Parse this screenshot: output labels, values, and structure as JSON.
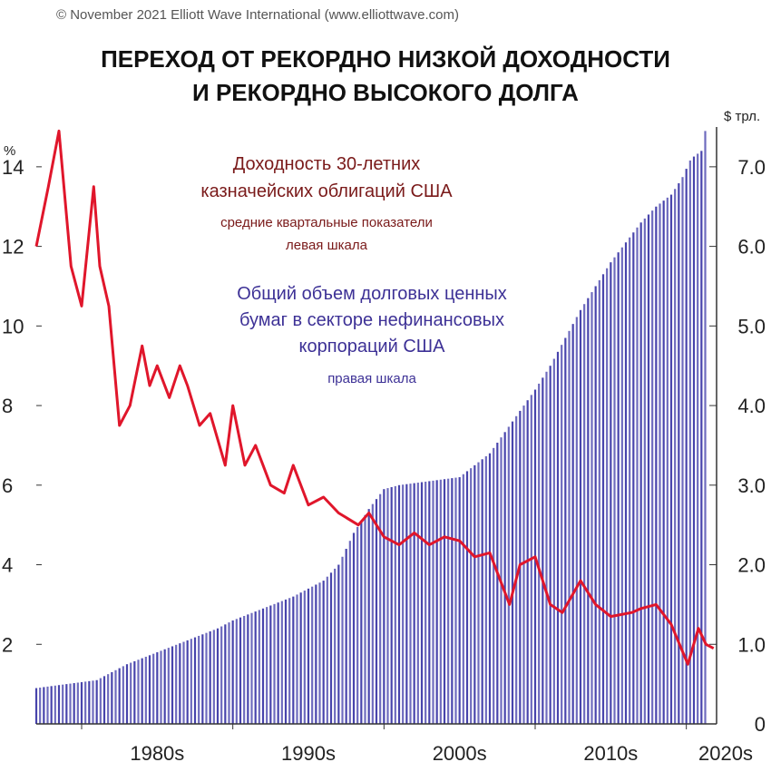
{
  "copyright": "© November 2021 Elliott Wave International (www.elliottwave.com)",
  "title_line1": "ПЕРЕХОД ОТ РЕКОРДНО НИЗКОЙ ДОХОДНОСТИ",
  "title_line2": "И РЕКОРДНО ВЫСОКОГО ДОЛГА",
  "yield_label_line1": "Доходность 30-летних",
  "yield_label_line2": "казначейских облигаций США",
  "yield_note_line1": "средние квартальные показатели",
  "yield_note_line2": "левая шкала",
  "debt_label_line1": "Общий объем долговых ценных",
  "debt_label_line2": "бумаг в секторе нефинансовых",
  "debt_label_line3": "корпораций США",
  "debt_note": "правая шкала",
  "left_unit": "%",
  "right_unit": "$ трл.",
  "colors": {
    "yield": "#e0162b",
    "debt": "#3e3aa8",
    "yield_text": "#7a1a1a",
    "debt_text": "#3d3196"
  },
  "chart_data": {
    "type": "line",
    "title": "ПЕРЕХОД ОТ РЕКОРДНО НИЗКОЙ ДОХОДНОСТИ И РЕКОРДНО ВЫСОКОГО ДОЛГА",
    "x_tick_labels": [
      "1980s",
      "1990s",
      "2000s",
      "2010s",
      "2020s"
    ],
    "x_range": [
      1977,
      2022
    ],
    "y_left": {
      "unit": "%",
      "range": [
        0,
        15
      ],
      "ticks": [
        2,
        4,
        6,
        8,
        10,
        12,
        14
      ]
    },
    "y_right": {
      "unit": "$ трл.",
      "range": [
        0,
        7.5
      ],
      "ticks": [
        "0",
        "1.0",
        "2.0",
        "3.0",
        "4.0",
        "5.0",
        "6.0",
        "7.0"
      ]
    },
    "legend": "none",
    "grid": false,
    "series": [
      {
        "axis": "left",
        "style": "line",
        "x": [
          1977,
          1977.8,
          1978.5,
          1979.3,
          1980,
          1980.8,
          1981.2,
          1981.8,
          1982.5,
          1983.2,
          1984,
          1984.5,
          1985,
          1985.8,
          1986.5,
          1987,
          1987.8,
          1988.5,
          1989.5,
          1990,
          1990.8,
          1991.5,
          1992.5,
          1993.4,
          1994,
          1995,
          1996,
          1997,
          1998.3,
          1999,
          2000,
          2001,
          2002,
          2003,
          2004,
          2005,
          2006,
          2007,
          2008.3,
          2009,
          2010,
          2011,
          2011.8,
          2013,
          2014,
          2015,
          2016.4,
          2017,
          2018,
          2019,
          2020.1,
          2020.8,
          2021.3,
          2021.8
        ],
        "values": [
          12.0,
          13.5,
          14.9,
          11.5,
          10.5,
          13.5,
          11.5,
          10.5,
          7.5,
          8.0,
          9.5,
          8.5,
          9.0,
          8.2,
          9.0,
          8.5,
          7.5,
          7.8,
          6.5,
          8.0,
          6.5,
          7.0,
          6.0,
          5.8,
          6.5,
          5.5,
          5.7,
          5.3,
          5.0,
          5.3,
          4.7,
          4.5,
          4.8,
          4.5,
          4.7,
          4.6,
          4.2,
          4.3,
          3.0,
          4.0,
          4.2,
          3.0,
          2.8,
          3.6,
          3.0,
          2.7,
          2.8,
          2.9,
          3.0,
          2.5,
          1.5,
          2.4,
          2.0,
          1.9
        ]
      },
      {
        "axis": "right",
        "style": "bars",
        "x": [
          1977,
          1979,
          1981,
          1983,
          1985,
          1987,
          1989,
          1990,
          1992,
          1994,
          1996,
          1997,
          1998,
          1999,
          2000,
          2001,
          2003,
          2005,
          2007,
          2008.5,
          2010,
          2011,
          2012,
          2013,
          2014,
          2015,
          2016,
          2017,
          2018,
          2019,
          2019.7,
          2020.3,
          2021,
          2021.3
        ],
        "values": [
          0.45,
          0.5,
          0.55,
          0.75,
          0.9,
          1.05,
          1.2,
          1.3,
          1.45,
          1.6,
          1.8,
          2.0,
          2.4,
          2.7,
          2.95,
          3.0,
          3.05,
          3.1,
          3.4,
          3.8,
          4.2,
          4.5,
          4.85,
          5.2,
          5.5,
          5.8,
          6.05,
          6.3,
          6.5,
          6.65,
          6.85,
          7.1,
          7.2,
          7.5
        ]
      }
    ]
  }
}
